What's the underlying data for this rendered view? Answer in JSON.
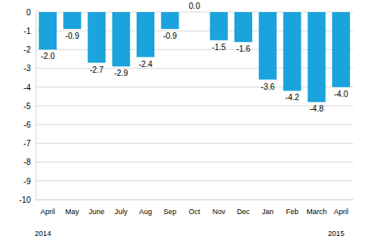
{
  "chart_data": {
    "type": "bar",
    "categories": [
      "April",
      "May",
      "June",
      "July",
      "Aug",
      "Sep",
      "Oct",
      "Nov",
      "Dec",
      "Jan",
      "Feb",
      "March",
      "April"
    ],
    "values": [
      -2.0,
      -0.9,
      -2.7,
      -2.9,
      -2.4,
      -0.9,
      0.0,
      -1.5,
      -1.6,
      -3.6,
      -4.2,
      -4.8,
      -4.0
    ],
    "value_labels": [
      "-2.0",
      "-0.9",
      "-2.7",
      "-2.9",
      "-2.4",
      "-0.9",
      "0.0",
      "-1.5",
      "-1.6",
      "-3.6",
      "-4.2",
      "-4.8",
      "-4.0"
    ],
    "color": "#1aa3dd",
    "ylim": [
      -10,
      0
    ],
    "yticks": [
      -10,
      -9,
      -8,
      -7,
      -6,
      -5,
      -4,
      -3,
      -2,
      -1,
      0
    ],
    "grid": true,
    "data_labels": true,
    "annotations": [
      {
        "text": "2014",
        "at": 0
      },
      {
        "text": "2015",
        "at": 12
      }
    ]
  }
}
